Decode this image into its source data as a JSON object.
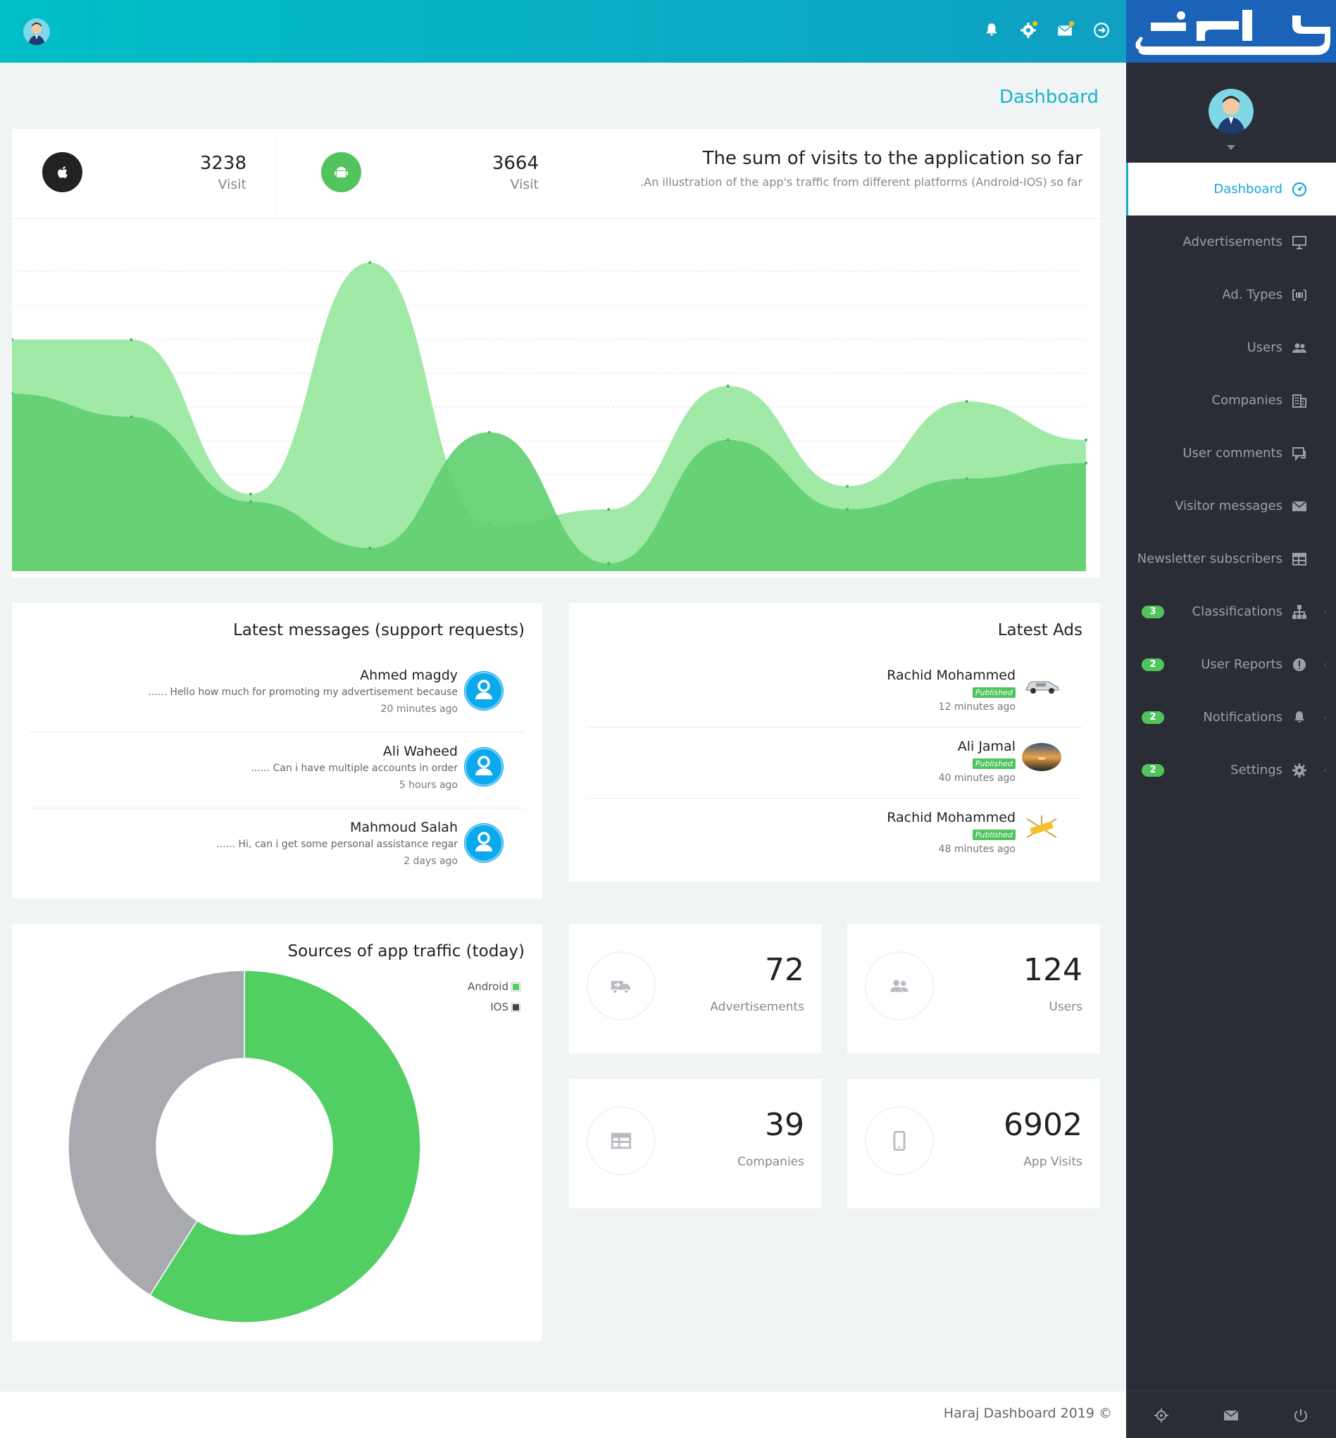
{
  "header": {
    "icons": [
      {
        "name": "bell-icon",
        "dot": false
      },
      {
        "name": "gear-icon",
        "dot": true
      },
      {
        "name": "mail-icon",
        "dot": true
      },
      {
        "name": "logout-icon",
        "dot": false
      }
    ]
  },
  "sidebar": {
    "logo_text": "حراج",
    "items": [
      {
        "label": "Dashboard",
        "icon": "dashboard-icon",
        "active": true,
        "badge": ""
      },
      {
        "label": "Advertisements",
        "icon": "presentation-icon",
        "active": false,
        "badge": ""
      },
      {
        "label": "Ad. Types",
        "icon": "barcode-icon",
        "active": false,
        "badge": ""
      },
      {
        "label": "Users",
        "icon": "users-icon",
        "active": false,
        "badge": ""
      },
      {
        "label": "Companies",
        "icon": "building-icon",
        "active": false,
        "badge": ""
      },
      {
        "label": "User comments",
        "icon": "comments-icon",
        "active": false,
        "badge": ""
      },
      {
        "label": "Visitor messages",
        "icon": "envelope-icon",
        "active": false,
        "badge": ""
      },
      {
        "label": "Newsletter subscribers",
        "icon": "newsletter-icon",
        "active": false,
        "badge": ""
      },
      {
        "label": "Classifications",
        "icon": "sitemap-icon",
        "active": false,
        "badge": "3"
      },
      {
        "label": "User Reports",
        "icon": "report-icon",
        "active": false,
        "badge": "2"
      },
      {
        "label": "Notifications",
        "icon": "bell-icon",
        "active": false,
        "badge": "2"
      },
      {
        "label": "Settings",
        "icon": "gear-icon",
        "active": false,
        "badge": "2"
      }
    ],
    "footer_icons": [
      "settings-icon",
      "mail-icon",
      "power-icon"
    ]
  },
  "page": {
    "title": "Dashboard"
  },
  "visits": {
    "title": "The sum of visits to the application so far",
    "subtitle": ".An illustration of the app's traffic from different platforms (Android-IOS) so far",
    "ios": {
      "value": "3238",
      "label": "Visit"
    },
    "android": {
      "value": "3664",
      "label": "Visit"
    }
  },
  "messages": {
    "title": "Latest messages (support requests)",
    "items": [
      {
        "name": "Ahmed magdy",
        "text": "...... Hello how much for promoting my advertisement because",
        "time": "20 minutes ago"
      },
      {
        "name": "Ali Waheed",
        "text": "...... Can i have multiple accounts in order",
        "time": "5 hours ago"
      },
      {
        "name": "Mahmoud Salah",
        "text": "...... Hi, can i get some personal assistance regar",
        "time": "2 days ago"
      }
    ]
  },
  "ads": {
    "title": "Latest Ads",
    "items": [
      {
        "name": "Rachid Mohammed",
        "status": "Published",
        "time": "12 minutes ago",
        "thumb": "car-thumbnail"
      },
      {
        "name": "Ali Jamal",
        "status": "Published",
        "time": "40 minutes ago",
        "thumb": "sunset-thumbnail"
      },
      {
        "name": "Rachid Mohammed",
        "status": "Published",
        "time": "48 minutes ago",
        "thumb": "advertisement-thumbnail"
      }
    ]
  },
  "traffic": {
    "title": "Sources of app traffic (today)",
    "legend": [
      {
        "label": "Android",
        "color": "#51cf63"
      },
      {
        "label": "IOS",
        "color": "#40444c"
      }
    ]
  },
  "stats": [
    {
      "value": "72",
      "label": "Advertisements",
      "icon": "truck-icon"
    },
    {
      "value": "124",
      "label": "Users",
      "icon": "users-icon"
    },
    {
      "value": "39",
      "label": "Companies",
      "icon": "table-icon"
    },
    {
      "value": "6902",
      "label": "App Visits",
      "icon": "mobile-icon"
    }
  ],
  "footer": {
    "text": "Haraj Dashboard 2019 ©"
  },
  "chart_data": [
    {
      "type": "area",
      "x": [
        0,
        1,
        2,
        3,
        4,
        5,
        6,
        7,
        8,
        9
      ],
      "series": [
        {
          "values": [
            23,
            20,
            9,
            3,
            18,
            1,
            17,
            8,
            12,
            14
          ],
          "color": "#5fcf70"
        },
        {
          "values": [
            30,
            30,
            10,
            40,
            6,
            8,
            24,
            11,
            22,
            17
          ],
          "color": "#8fe596"
        }
      ],
      "ylim": [
        0,
        42
      ]
    },
    {
      "type": "pie",
      "categories": [
        "Android",
        "IOS"
      ],
      "values": [
        59,
        41
      ],
      "colors": [
        "#51cf63",
        "#a8aab0"
      ]
    }
  ]
}
